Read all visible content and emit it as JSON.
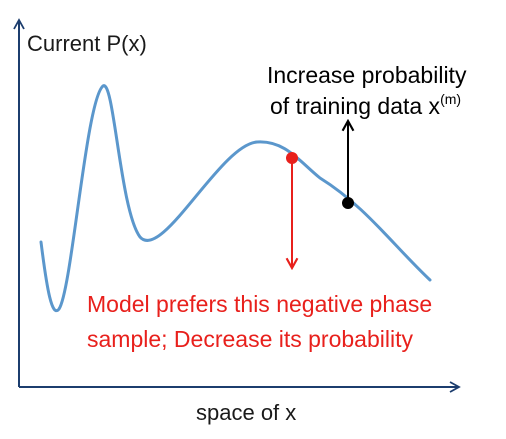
{
  "axes": {
    "y_label": "Current P(x)",
    "x_label": "space of x"
  },
  "positive_phase": {
    "line1": "Increase probability",
    "line2_main": "of training data x",
    "line2_sup": "(m)",
    "color": "#000000"
  },
  "negative_phase": {
    "line1": "Model prefers this negative phase",
    "line2": "sample; Decrease its probability",
    "color": "#e8201c"
  },
  "colors": {
    "curve": "#5b97cc",
    "axis": "#1c3d6e",
    "negative": "#e8201c",
    "positive": "#000000"
  }
}
